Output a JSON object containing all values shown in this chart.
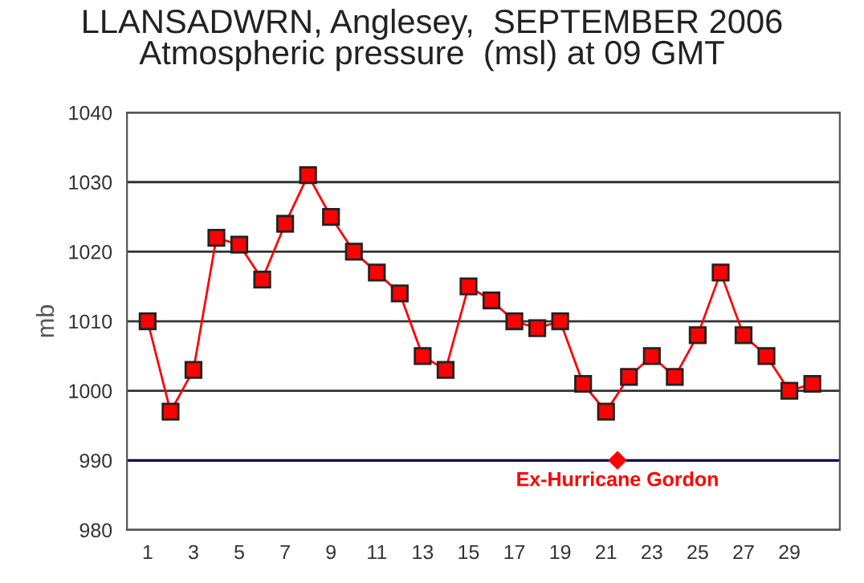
{
  "chart_data": {
    "type": "line",
    "title": "LLANSADWRN, Anglesey,  SEPTEMBER 2006\nAtmospheric pressure  (msl) at 09 GMT",
    "ylabel": "mb",
    "x": [
      1,
      2,
      3,
      4,
      5,
      6,
      7,
      8,
      9,
      10,
      11,
      12,
      13,
      14,
      15,
      16,
      17,
      18,
      19,
      20,
      21,
      22,
      23,
      24,
      25,
      26,
      27,
      28,
      29,
      30
    ],
    "series": [
      {
        "color": "#ff0000",
        "values": [
          1010,
          997,
          1003,
          1022,
          1021,
          1016,
          1024,
          1031,
          1025,
          1020,
          1017,
          1014,
          1005,
          1003,
          1015,
          1013,
          1010,
          1009,
          1010,
          1001,
          997,
          1002,
          1005,
          1002,
          1008,
          1017,
          1008,
          1005,
          1000,
          1001
        ]
      }
    ],
    "xlim": [
      0.1,
      31.2
    ],
    "xticks": [
      1,
      3,
      5,
      7,
      9,
      11,
      13,
      15,
      17,
      19,
      21,
      23,
      25,
      27,
      29
    ],
    "ylim": [
      980,
      1040
    ],
    "yticks": [
      980,
      990,
      1000,
      1010,
      1020,
      1030,
      1040
    ],
    "grid": "y",
    "marker": "square",
    "line_style": "solid",
    "ref_lines": [
      {
        "axis": "y",
        "value": 990,
        "color": "#000066"
      }
    ],
    "annotations": [
      {
        "text": "Ex-Hurricane Gordon",
        "x": 21.5,
        "y": 990
      }
    ]
  }
}
